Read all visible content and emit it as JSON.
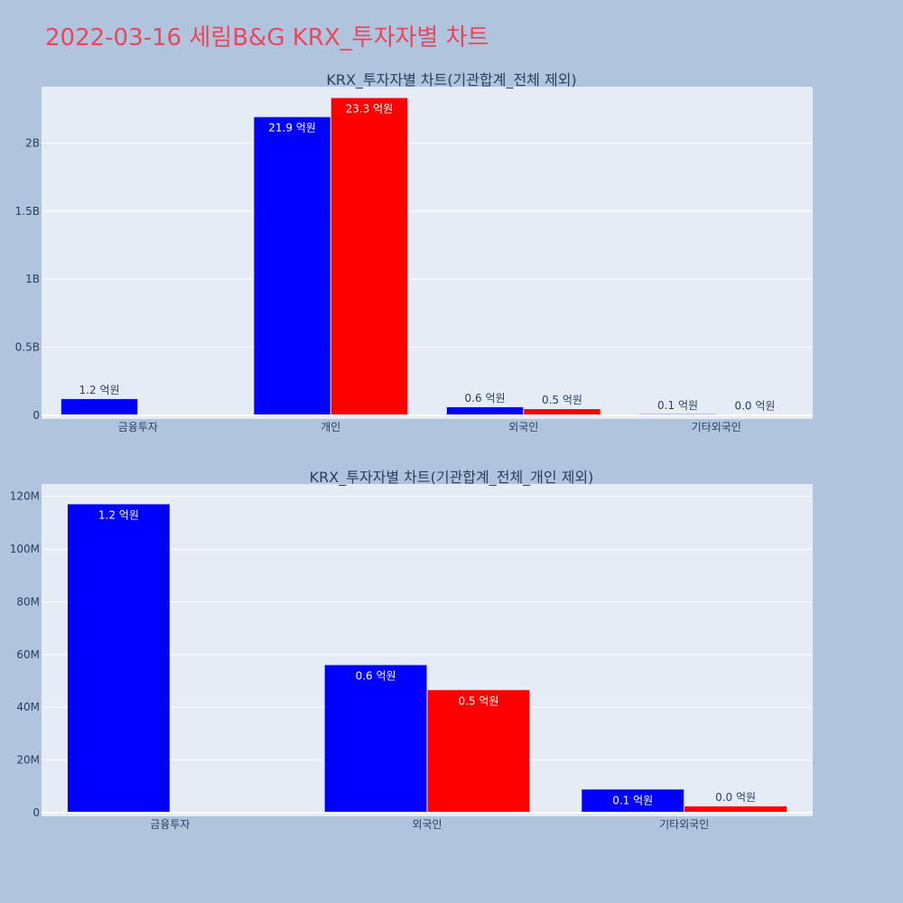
{
  "page": {
    "title": "2022-03-16 세림B&G KRX_투자자별 차트",
    "title_color": "#e8485c",
    "background": "#b0c4de",
    "plot_background": "#e5ecf6"
  },
  "chart_data": [
    {
      "type": "bar",
      "title": "KRX_투자자별 차트(기관합계_전체 제외)",
      "categories": [
        "금융투자",
        "개인",
        "외국인",
        "기타외국인"
      ],
      "ylim": [
        0,
        2400000000
      ],
      "yticks": [
        {
          "value": 0,
          "label": "0"
        },
        {
          "value": 500000000,
          "label": "0.5B"
        },
        {
          "value": 1000000000,
          "label": "1B"
        },
        {
          "value": 1500000000,
          "label": "1.5B"
        },
        {
          "value": 2000000000,
          "label": "2B"
        }
      ],
      "grid": true,
      "series": [
        {
          "color": "#0000ff",
          "values": [
            120000000,
            2190000000,
            60000000,
            8000000
          ],
          "labels": [
            "1.2 억원",
            "21.9 억원",
            "0.6 억원",
            "0.1 억원"
          ]
        },
        {
          "color": "#ff0000",
          "values": [
            0,
            2330000000,
            46000000,
            2000000
          ],
          "labels": [
            "",
            "23.3 억원",
            "0.5 억원",
            "0.0 억원"
          ]
        }
      ]
    },
    {
      "type": "bar",
      "title": "KRX_투자자별 차트(기관합계_전체_개인 제외)",
      "categories": [
        "금융투자",
        "외국인",
        "기타외국인"
      ],
      "ylim": [
        0,
        124000000
      ],
      "yticks": [
        {
          "value": 0,
          "label": "0"
        },
        {
          "value": 20000000,
          "label": "20M"
        },
        {
          "value": 40000000,
          "label": "40M"
        },
        {
          "value": 60000000,
          "label": "60M"
        },
        {
          "value": 80000000,
          "label": "80M"
        },
        {
          "value": 100000000,
          "label": "100M"
        },
        {
          "value": 120000000,
          "label": "120M"
        }
      ],
      "grid": true,
      "series": [
        {
          "color": "#0000ff",
          "values": [
            117000000,
            56000000,
            8800000
          ],
          "labels": [
            "1.2 억원",
            "0.6 억원",
            "0.1 억원"
          ]
        },
        {
          "color": "#ff0000",
          "values": [
            0,
            46500000,
            2400000
          ],
          "labels": [
            "",
            "0.5 억원",
            "0.0 억원"
          ]
        }
      ]
    }
  ]
}
